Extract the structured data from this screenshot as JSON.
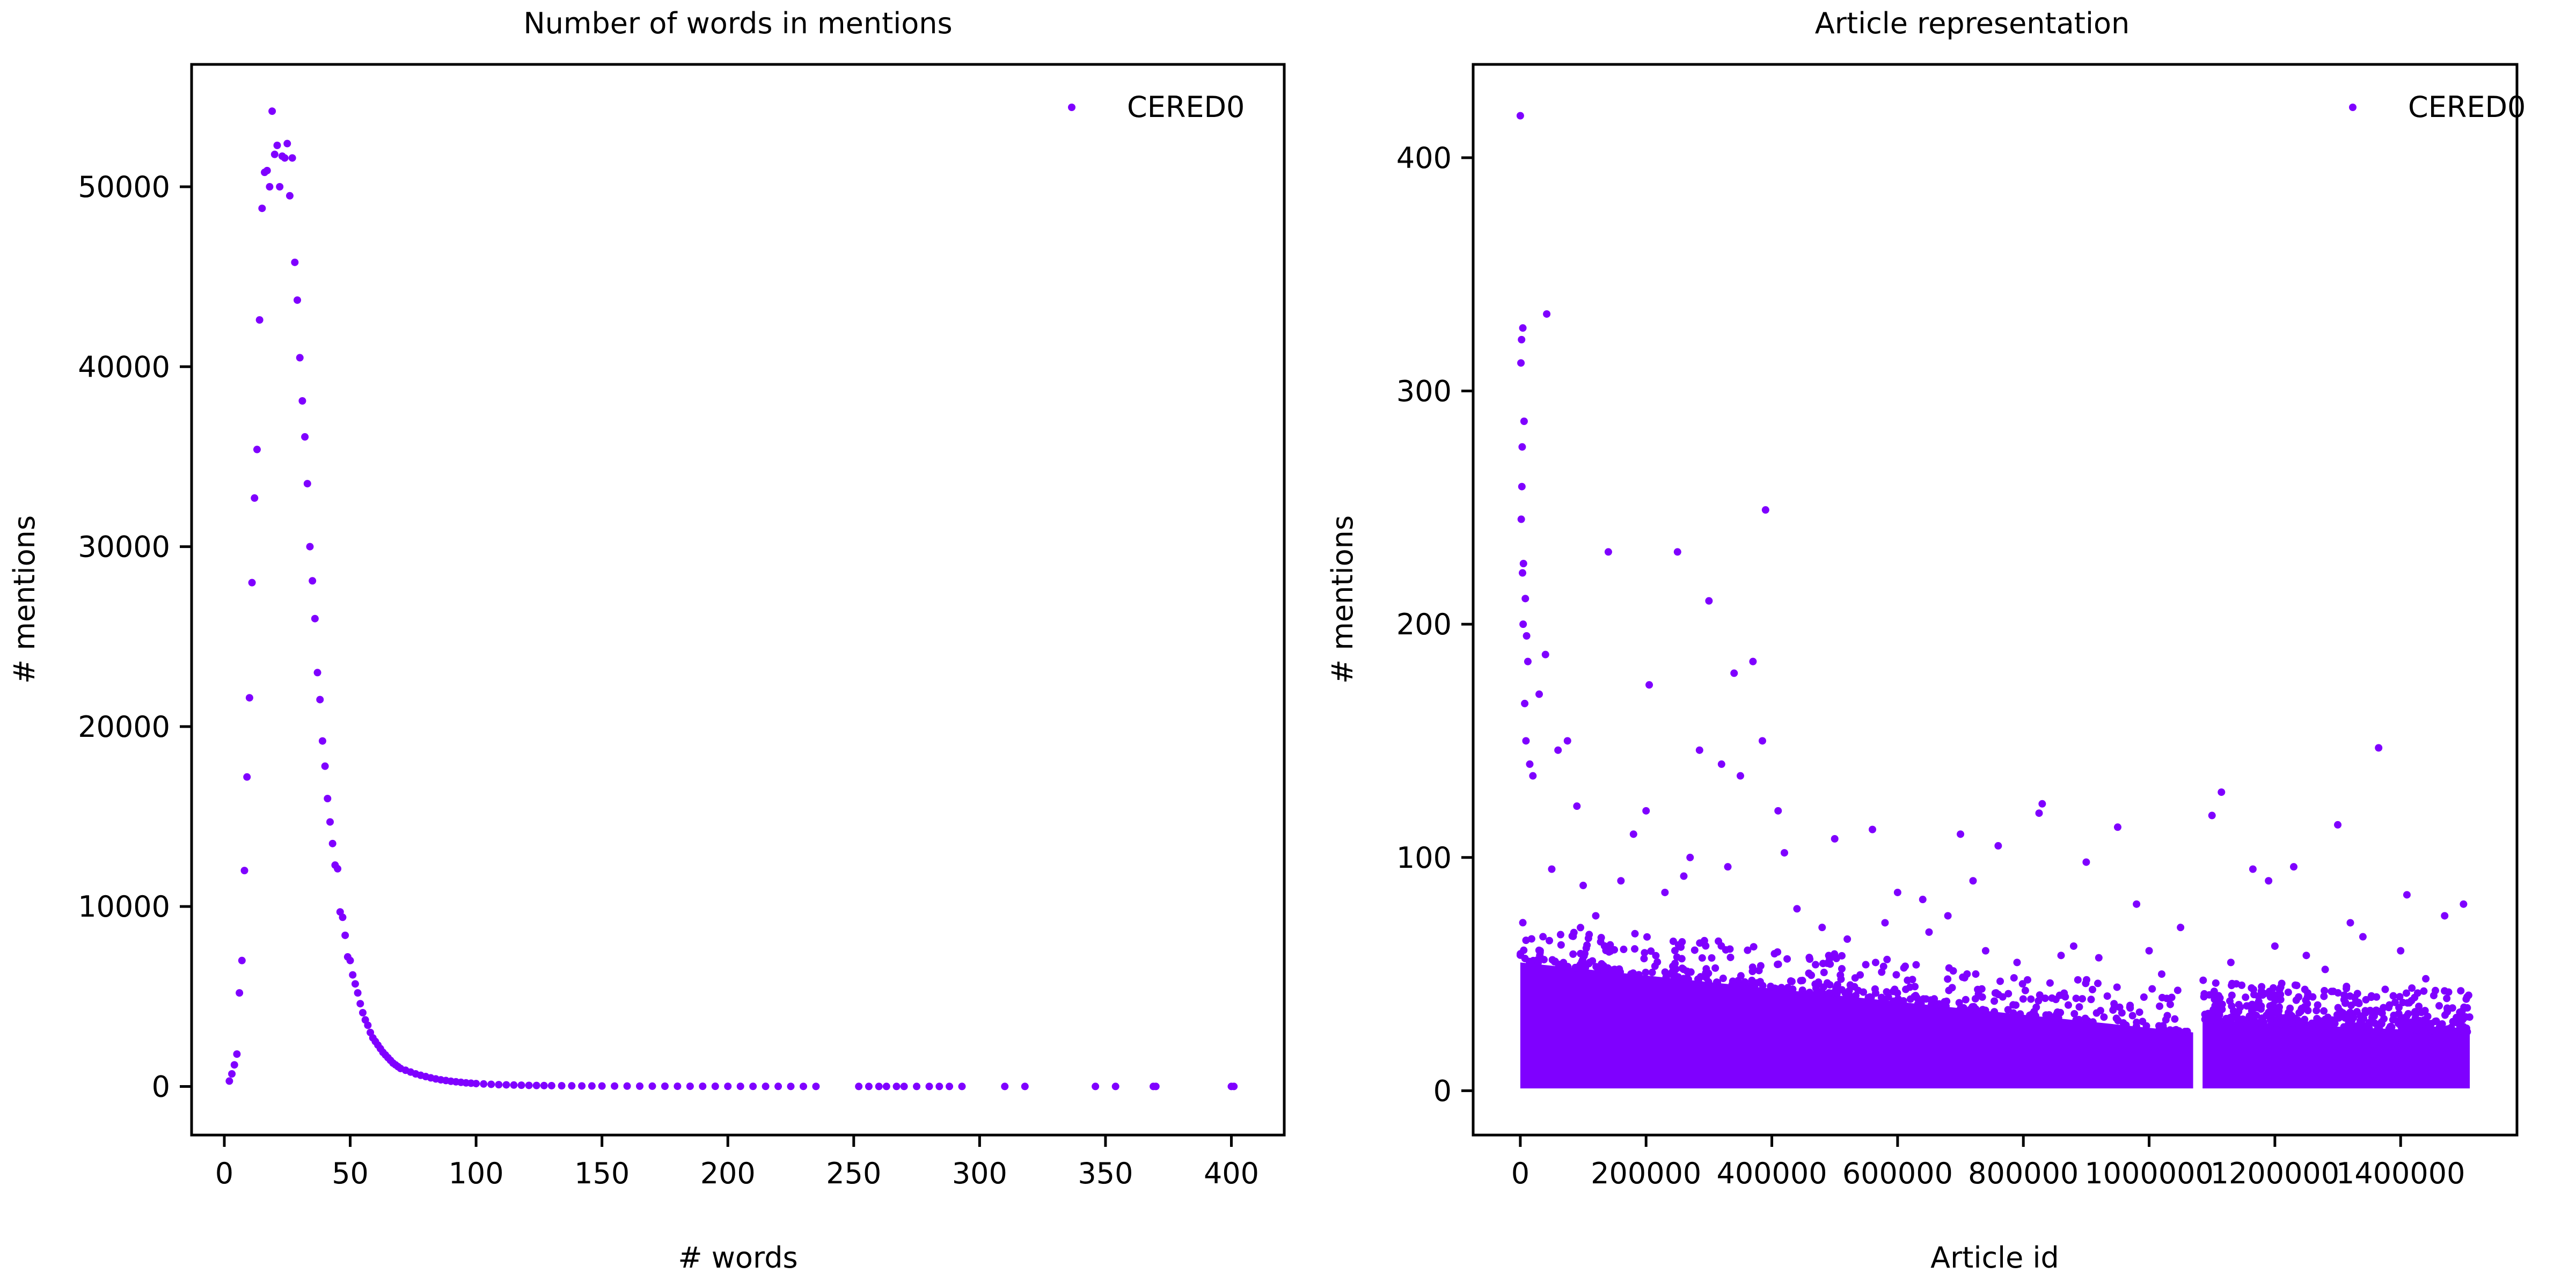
{
  "colors": {
    "series": "#7f00ff",
    "axes": "#000000",
    "background": "#ffffff"
  },
  "chart_data": [
    {
      "type": "scatter",
      "title": "Number of words in mentions",
      "xlabel": "# words",
      "ylabel": "# mentions",
      "xlim": [
        -13,
        421
      ],
      "ylim": [
        -2700,
        56800
      ],
      "xticks": [
        0,
        50,
        100,
        150,
        200,
        250,
        300,
        350,
        400
      ],
      "xtick_labels": [
        "0",
        "50",
        "100",
        "150",
        "200",
        "250",
        "300",
        "350",
        "400"
      ],
      "yticks": [
        0,
        10000,
        20000,
        30000,
        40000,
        50000
      ],
      "ytick_labels": [
        "0",
        "10000",
        "20000",
        "30000",
        "40000",
        "50000"
      ],
      "grid": false,
      "legend": {
        "location": "upper right",
        "entries": [
          "CERED0"
        ]
      },
      "series": [
        {
          "name": "CERED0",
          "points": [
            [
              2,
              300
            ],
            [
              3,
              700
            ],
            [
              4,
              1200
            ],
            [
              5,
              1800
            ],
            [
              6,
              5200
            ],
            [
              7,
              7000
            ],
            [
              8,
              12000
            ],
            [
              9,
              17200
            ],
            [
              10,
              21600
            ],
            [
              11,
              28000
            ],
            [
              12,
              32700
            ],
            [
              13,
              35400
            ],
            [
              14,
              42600
            ],
            [
              15,
              48800
            ],
            [
              16,
              50800
            ],
            [
              17,
              50900
            ],
            [
              18,
              50000
            ],
            [
              19,
              54200
            ],
            [
              20,
              51800
            ],
            [
              21,
              52300
            ],
            [
              22,
              50000
            ],
            [
              23,
              51700
            ],
            [
              24,
              51600
            ],
            [
              25,
              52400
            ],
            [
              26,
              49500
            ],
            [
              27,
              51600
            ],
            [
              28,
              45800
            ],
            [
              29,
              43700
            ],
            [
              30,
              40500
            ],
            [
              31,
              38100
            ],
            [
              32,
              36100
            ],
            [
              33,
              33500
            ],
            [
              34,
              30000
            ],
            [
              35,
              28100
            ],
            [
              36,
              26000
            ],
            [
              37,
              23000
            ],
            [
              38,
              21500
            ],
            [
              39,
              19200
            ],
            [
              40,
              17800
            ],
            [
              41,
              16000
            ],
            [
              42,
              14700
            ],
            [
              43,
              13500
            ],
            [
              44,
              12300
            ],
            [
              45,
              12100
            ],
            [
              46,
              9700
            ],
            [
              47,
              9400
            ],
            [
              48,
              8400
            ],
            [
              49,
              7200
            ],
            [
              50,
              7000
            ],
            [
              51,
              6200
            ],
            [
              52,
              5700
            ],
            [
              53,
              5200
            ],
            [
              54,
              4600
            ],
            [
              55,
              4100
            ],
            [
              56,
              3700
            ],
            [
              57,
              3400
            ],
            [
              58,
              3000
            ],
            [
              59,
              2700
            ],
            [
              60,
              2500
            ],
            [
              61,
              2300
            ],
            [
              62,
              2100
            ],
            [
              63,
              1900
            ],
            [
              64,
              1750
            ],
            [
              65,
              1600
            ],
            [
              66,
              1450
            ],
            [
              67,
              1300
            ],
            [
              68,
              1200
            ],
            [
              69,
              1100
            ],
            [
              70,
              1000
            ],
            [
              72,
              900
            ],
            [
              74,
              800
            ],
            [
              76,
              700
            ],
            [
              78,
              620
            ],
            [
              80,
              550
            ],
            [
              82,
              480
            ],
            [
              84,
              420
            ],
            [
              86,
              370
            ],
            [
              88,
              330
            ],
            [
              90,
              290
            ],
            [
              92,
              260
            ],
            [
              94,
              230
            ],
            [
              96,
              200
            ],
            [
              98,
              180
            ],
            [
              100,
              160
            ],
            [
              103,
              140
            ],
            [
              106,
              120
            ],
            [
              109,
              100
            ],
            [
              112,
              90
            ],
            [
              115,
              80
            ],
            [
              118,
              70
            ],
            [
              121,
              60
            ],
            [
              124,
              55
            ],
            [
              127,
              50
            ],
            [
              130,
              45
            ],
            [
              134,
              40
            ],
            [
              138,
              35
            ],
            [
              142,
              30
            ],
            [
              146,
              28
            ],
            [
              150,
              25
            ],
            [
              155,
              22
            ],
            [
              160,
              20
            ],
            [
              165,
              18
            ],
            [
              170,
              16
            ],
            [
              175,
              14
            ],
            [
              180,
              12
            ],
            [
              185,
              11
            ],
            [
              190,
              10
            ],
            [
              195,
              9
            ],
            [
              200,
              8
            ],
            [
              205,
              7
            ],
            [
              210,
              6
            ],
            [
              215,
              5
            ],
            [
              220,
              5
            ],
            [
              225,
              4
            ],
            [
              230,
              4
            ],
            [
              235,
              3
            ],
            [
              252,
              2
            ],
            [
              256,
              2
            ],
            [
              260,
              2
            ],
            [
              263,
              2
            ],
            [
              267,
              2
            ],
            [
              270,
              2
            ],
            [
              275,
              1
            ],
            [
              280,
              1
            ],
            [
              284,
              1
            ],
            [
              288,
              1
            ],
            [
              293,
              1
            ],
            [
              310,
              1
            ],
            [
              318,
              1
            ],
            [
              346,
              1
            ],
            [
              354,
              1
            ],
            [
              369,
              1
            ],
            [
              370,
              1
            ],
            [
              400,
              1
            ],
            [
              401,
              1
            ]
          ]
        }
      ]
    },
    {
      "type": "scatter",
      "title": "Article representation",
      "xlabel": "Article id",
      "ylabel": "# mentions",
      "xlim": [
        -75000,
        1585000
      ],
      "ylim": [
        -19,
        440
      ],
      "xticks": [
        0,
        200000,
        400000,
        600000,
        800000,
        1000000,
        1200000,
        1400000
      ],
      "xtick_labels": [
        "0",
        "200000",
        "400000",
        "600000",
        "800000",
        "1000000",
        "1200000",
        "1400000"
      ],
      "yticks": [
        0,
        100,
        200,
        300,
        400
      ],
      "ytick_labels": [
        "0",
        "100",
        "200",
        "300",
        "400"
      ],
      "grid": false,
      "legend": {
        "location": "upper right",
        "entries": [
          "CERED0"
        ]
      },
      "series": [
        {
          "name": "CERED0",
          "points": [
            [
              0,
              418
            ],
            [
              2000,
              322
            ],
            [
              4000,
              327
            ],
            [
              1000,
              312
            ],
            [
              3000,
              276
            ],
            [
              6000,
              287
            ],
            [
              2500,
              259
            ],
            [
              1500,
              245
            ],
            [
              3500,
              222
            ],
            [
              5000,
              226
            ],
            [
              8000,
              211
            ],
            [
              10000,
              195
            ],
            [
              12000,
              184
            ],
            [
              4500,
              200
            ],
            [
              7000,
              166
            ],
            [
              9000,
              150
            ],
            [
              15000,
              140
            ],
            [
              20000,
              135
            ],
            [
              42000,
              333
            ],
            [
              40000,
              187
            ],
            [
              30000,
              170
            ],
            [
              60000,
              146
            ],
            [
              75000,
              150
            ],
            [
              90000,
              122
            ],
            [
              140000,
              231
            ],
            [
              205000,
              174
            ],
            [
              250000,
              231
            ],
            [
              300000,
              210
            ],
            [
              285000,
              146
            ],
            [
              340000,
              179
            ],
            [
              370000,
              184
            ],
            [
              385000,
              150
            ],
            [
              390000,
              249
            ],
            [
              410000,
              120
            ],
            [
              350000,
              135
            ],
            [
              320000,
              140
            ],
            [
              200000,
              120
            ],
            [
              180000,
              110
            ],
            [
              270000,
              100
            ],
            [
              420000,
              102
            ],
            [
              500000,
              108
            ],
            [
              560000,
              112
            ],
            [
              600000,
              85
            ],
            [
              640000,
              82
            ],
            [
              700000,
              110
            ],
            [
              720000,
              90
            ],
            [
              760000,
              105
            ],
            [
              830000,
              123
            ],
            [
              825000,
              119
            ],
            [
              900000,
              98
            ],
            [
              950000,
              113
            ],
            [
              980000,
              80
            ],
            [
              1050000,
              70
            ],
            [
              1100000,
              118
            ],
            [
              1115000,
              128
            ],
            [
              1165000,
              95
            ],
            [
              1190000,
              90
            ],
            [
              1230000,
              96
            ],
            [
              1300000,
              114
            ],
            [
              1320000,
              72
            ],
            [
              1340000,
              66
            ],
            [
              1365000,
              147
            ],
            [
              1410000,
              84
            ],
            [
              1470000,
              75
            ],
            [
              1500000,
              80
            ],
            [
              50000,
              95
            ],
            [
              100000,
              88
            ],
            [
              120000,
              75
            ],
            [
              160000,
              90
            ],
            [
              230000,
              85
            ],
            [
              260000,
              92
            ],
            [
              330000,
              96
            ],
            [
              440000,
              78
            ],
            [
              480000,
              70
            ],
            [
              520000,
              65
            ],
            [
              580000,
              72
            ],
            [
              650000,
              68
            ],
            [
              680000,
              75
            ],
            [
              740000,
              60
            ],
            [
              790000,
              55
            ],
            [
              860000,
              58
            ],
            [
              880000,
              62
            ],
            [
              920000,
              57
            ],
            [
              1000000,
              60
            ],
            [
              1020000,
              50
            ],
            [
              1130000,
              55
            ],
            [
              1200000,
              62
            ],
            [
              1250000,
              58
            ],
            [
              1280000,
              52
            ],
            [
              1400000,
              60
            ],
            [
              1440000,
              48
            ]
          ],
          "dense_band": {
            "segments": [
              {
                "x_range": [
                  0,
                  1070000
                ],
                "y_top_start": 55,
                "y_top_end": 25
              },
              {
                "x_range": [
                  1085000,
                  1510000
                ],
                "y_top_start": 30,
                "y_top_end": 25
              }
            ],
            "y_min": 1
          }
        }
      ]
    }
  ]
}
